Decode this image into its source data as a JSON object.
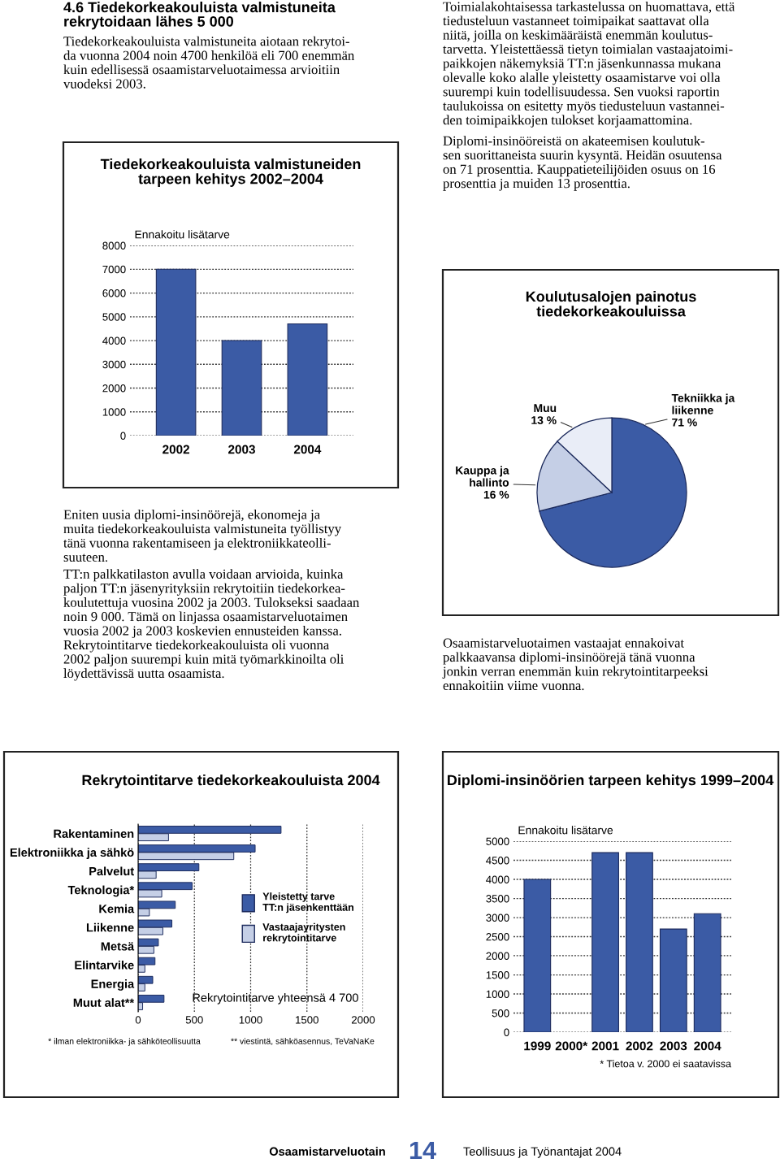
{
  "chart_data": [
    {
      "type": "other",
      "title": "4.6 Tiedekorkeakouluista valmistuneita\nrekrytoidaan lähes 5 000",
      "annotations": [
        "Tiedekorkeakouluista valmistuneita aiotaan rekrytoi-\nda vuonna 2004 noin 4700 henkilöä eli 700 enemmän\nkuin edellisessä osaamistarveluotaimessa arvioitiin\nvuodeksi 2003."
      ]
    },
    {
      "type": "bar",
      "title": "Tiedekorkeakouluista valmistuneiden\ntarpeen kehitys 2002–2004",
      "ylabel": "Ennakoitu lisätarve",
      "categories": [
        "2002",
        "2003",
        "2004"
      ],
      "values": [
        7000,
        4000,
        4700
      ],
      "color": "#3b5ba5",
      "ylim": [
        0,
        8000
      ],
      "yticks": [
        0,
        1000,
        2000,
        3000,
        4000,
        5000,
        6000,
        7000,
        8000
      ],
      "grid": "y"
    },
    {
      "type": "other",
      "annotations": [
        "Toimialakohtaisessa tarkastelussa on huomattava, että\ntiedusteluun vastanneet toimipaikat saattavat olla\nniitä, joilla on keskimääräistä enemmän koulutus-\ntarvetta. Yleistettäessä tietyn toimialan vastaajatoimi-\npaikkojen näkemyksiä TT:n jäsenkunnassa mukana\nolevalle koko alalle yleistetty osaamistarve voi olla\nsuurempi kuin todellisuudessa. Sen vuoksi raportin\ntaulukoissa on esitetty myös tiedusteluun vastannei-\nden toimipaikkojen tulokset korjaamattomina.",
        "Diplomi-insinööreistä on akateemisen koulutuk-\nsen suorittaneista suurin kysyntä. Heidän osuutensa\non 71 prosenttia. Kauppatieteilijöiden osuus on 16\nprosenttia ja muiden 13 prosenttia."
      ]
    },
    {
      "type": "pie",
      "title": "Koulutusalojen painotus\ntiedekorkeakouluissa",
      "categories": [
        "Tekniikka ja\nliikenne",
        "Kauppa ja\nhallinto",
        "Muu"
      ],
      "values": [
        71,
        16,
        13
      ],
      "value_labels": [
        "71 %",
        "16 %",
        "13 %"
      ],
      "colors": [
        "#3b5ba5",
        "#c5cfe6",
        "#e9edf7"
      ]
    },
    {
      "type": "other",
      "annotations": [
        "Eniten uusia diplomi-insinöörejä, ekonomeja ja\nmuita tiedekorkeakouluista valmistuneita työllistyy\ntänä vuonna rakentamiseen ja elektroniikkateolli-\nsuuteen.",
        "TT:n palkkatilaston avulla voidaan arvioida, kuinka\npaljon TT:n jäsenyrityksiin rekrytoitiin tiedekorkea-\nkoulutettuja vuosina 2002 ja 2003. Tulokseksi saadaan\nnoin 9 000. Tämä on linjassa osaamistarveluotaimen\nvuosia 2002 ja 2003 koskevien ennusteiden kanssa.\nRekrytointitarve tiedekorkeakouluista oli vuonna\n2002 paljon suurempi kuin mitä työmarkkinoilta oli\nlöydettävissä uutta osaamista."
      ]
    },
    {
      "type": "other",
      "annotations": [
        "Osaamistarveluotaimen vastaajat ennakoivat\npalkkaavansa diplomi-insinöörejä tänä vuonna\njonkin verran enemmän kuin rekrytointitarpeeksi\nennakoitiin viime vuonna."
      ]
    },
    {
      "type": "bar",
      "orientation": "horizontal",
      "title": "Rekrytointitarve tiedekorkeakouluista 2004",
      "categories": [
        "Rakentaminen",
        "Elektroniikka ja sähkö",
        "Palvelut",
        "Teknologia*",
        "Kemia",
        "Liikenne",
        "Metsä",
        "Elintarvike",
        "Energia",
        "Muut alat**"
      ],
      "series": [
        {
          "name": "Yleistetty tarve\nTT:n jäsenkenttään",
          "color": "#3b5ba5",
          "values": [
            1270,
            1040,
            540,
            480,
            330,
            300,
            180,
            150,
            130,
            230
          ]
        },
        {
          "name": "Vastaajayritysten\nrekrytointitarve",
          "color": "#c5cfe6",
          "values": [
            270,
            850,
            160,
            210,
            100,
            220,
            140,
            60,
            60,
            40
          ]
        }
      ],
      "xlim": [
        0,
        2000
      ],
      "xticks": [
        0,
        500,
        1000,
        1500,
        2000
      ],
      "grid": "x",
      "legend": "center right",
      "annotations": [
        "Rekrytointitarve yhteensä 4 700",
        "* ilman elektroniikka- ja sähköteollisuutta",
        "** viestintä, sähköasennus, TeVaNaKe"
      ]
    },
    {
      "type": "bar",
      "title": "Diplomi-insinöörien tarpeen kehitys 1999–2004",
      "ylabel": "Ennakoitu lisätarve",
      "categories": [
        "1999",
        "2000*",
        "2001",
        "2002",
        "2003",
        "2004"
      ],
      "values": [
        4000,
        null,
        4700,
        4700,
        2700,
        3100
      ],
      "color": "#3b5ba5",
      "ylim": [
        0,
        5000
      ],
      "yticks": [
        0,
        500,
        1000,
        1500,
        2000,
        2500,
        3000,
        3500,
        4000,
        4500,
        5000
      ],
      "grid": "y",
      "annotations": [
        "* Tietoa v. 2000 ei saatavissa"
      ]
    },
    {
      "type": "other",
      "annotations": [
        "Osaamistarveluotain",
        "14",
        "Teollisuus ja Työnantajat 2004"
      ]
    }
  ]
}
